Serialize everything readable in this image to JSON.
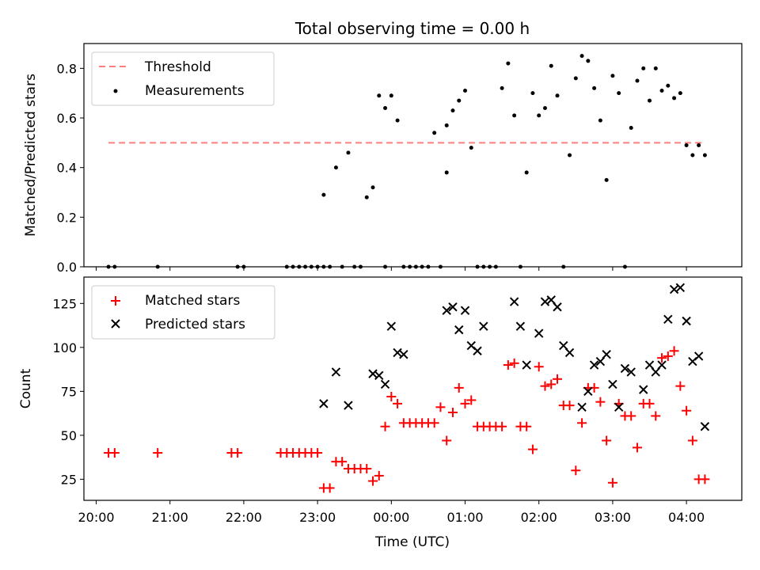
{
  "chart_data": [
    {
      "type": "scatter",
      "title": "Total observing time = 0.00 h",
      "xlabel": "",
      "ylabel": "Matched/Predicted stars",
      "xlim": [
        "19:50",
        "04:45"
      ],
      "ylim": [
        0,
        0.9
      ],
      "yticks": [
        "0.0",
        "0.2",
        "0.4",
        "0.6",
        "0.8"
      ],
      "legend": {
        "position": "upper-left",
        "entries": [
          "Threshold",
          "Measurements"
        ]
      },
      "colors": {
        "threshold": "#ff7f7f",
        "measurements": "#000000"
      },
      "threshold": {
        "name": "Threshold",
        "y": 0.5,
        "x_start": "20:10",
        "x_end": "04:15"
      },
      "series": [
        {
          "name": "Measurements",
          "x": [
            "20:10",
            "20:15",
            "20:50",
            "21:55",
            "22:00",
            "22:35",
            "22:40",
            "22:45",
            "22:50",
            "22:55",
            "23:00",
            "23:05",
            "23:05",
            "23:10",
            "23:15",
            "23:20",
            "23:25",
            "23:30",
            "23:35",
            "23:40",
            "23:45",
            "23:50",
            "23:55",
            "23:55",
            "00:00",
            "00:05",
            "00:10",
            "00:15",
            "00:20",
            "00:25",
            "00:30",
            "00:35",
            "00:40",
            "00:45",
            "00:45",
            "00:50",
            "00:55",
            "01:00",
            "01:05",
            "01:10",
            "01:15",
            "01:20",
            "01:25",
            "01:30",
            "01:35",
            "01:40",
            "01:45",
            "01:50",
            "01:55",
            "02:00",
            "02:05",
            "02:10",
            "02:15",
            "02:20",
            "02:25",
            "02:30",
            "02:35",
            "02:40",
            "02:45",
            "02:50",
            "02:55",
            "03:00",
            "03:05",
            "03:10",
            "03:15",
            "03:20",
            "03:25",
            "03:30",
            "03:35",
            "03:40",
            "03:45",
            "03:50",
            "03:55",
            "04:00",
            "04:05",
            "04:10",
            "04:15"
          ],
          "y": [
            0,
            0,
            0,
            0,
            0,
            0,
            0,
            0,
            0,
            0,
            0,
            0,
            0.29,
            0,
            0.4,
            0,
            0.46,
            0,
            0,
            0.28,
            0.32,
            0.69,
            0.64,
            0,
            0.69,
            0.59,
            0,
            0,
            0,
            0,
            0,
            0.54,
            0,
            0.38,
            0.57,
            0.63,
            0.67,
            0.71,
            0.48,
            0,
            0,
            0,
            0,
            0.72,
            0.82,
            0.61,
            0,
            0.38,
            0.7,
            0.61,
            0.64,
            0.81,
            0.69,
            0,
            0.45,
            0.76,
            0.85,
            0.83,
            0.72,
            0.59,
            0.35,
            0.77,
            0.7,
            0,
            0.56,
            0.75,
            0.8,
            0.67,
            0.8,
            0.71,
            0.73,
            0.68,
            0.7,
            0.49,
            0.45,
            0.49,
            0.45
          ]
        }
      ]
    },
    {
      "type": "scatter",
      "title": "",
      "xlabel": "Time (UTC)",
      "ylabel": "Count",
      "xlim": [
        "19:50",
        "04:45"
      ],
      "ylim": [
        13,
        140
      ],
      "yticks": [
        "25",
        "50",
        "75",
        "100",
        "125"
      ],
      "xticks": [
        "20:00",
        "21:00",
        "22:00",
        "23:00",
        "00:00",
        "01:00",
        "02:00",
        "03:00",
        "04:00"
      ],
      "legend": {
        "position": "upper-left",
        "entries": [
          "Matched stars",
          "Predicted stars"
        ]
      },
      "colors": {
        "matched": "#ff0000",
        "predicted": "#000000"
      },
      "series": [
        {
          "name": "Matched stars",
          "x": [
            "20:10",
            "20:15",
            "20:50",
            "21:50",
            "21:55",
            "22:30",
            "22:35",
            "22:40",
            "22:45",
            "22:50",
            "22:55",
            "23:00",
            "23:05",
            "23:10",
            "23:15",
            "23:20",
            "23:25",
            "23:30",
            "23:35",
            "23:40",
            "23:45",
            "23:50",
            "23:55",
            "00:00",
            "00:05",
            "00:10",
            "00:15",
            "00:20",
            "00:25",
            "00:30",
            "00:35",
            "00:40",
            "00:45",
            "00:50",
            "00:55",
            "01:00",
            "01:05",
            "01:10",
            "01:15",
            "01:20",
            "01:25",
            "01:30",
            "01:35",
            "01:40",
            "01:45",
            "01:50",
            "01:55",
            "02:00",
            "02:05",
            "02:10",
            "02:15",
            "02:20",
            "02:25",
            "02:30",
            "02:35",
            "02:40",
            "02:45",
            "02:50",
            "02:55",
            "03:00",
            "03:05",
            "03:10",
            "03:15",
            "03:20",
            "03:25",
            "03:30",
            "03:35",
            "03:40",
            "03:45",
            "03:50",
            "03:55",
            "04:00",
            "04:05",
            "04:10",
            "04:15"
          ],
          "y": [
            40,
            40,
            40,
            40,
            40,
            40,
            40,
            40,
            40,
            40,
            40,
            40,
            20,
            20,
            35,
            35,
            31,
            31,
            31,
            31,
            24,
            27,
            55,
            72,
            68,
            57,
            57,
            57,
            57,
            57,
            57,
            66,
            47,
            63,
            77,
            68,
            70,
            55,
            55,
            55,
            55,
            55,
            90,
            91,
            55,
            55,
            42,
            89,
            78,
            79,
            82,
            67,
            67,
            30,
            57,
            77,
            77,
            69,
            47,
            23,
            68,
            61,
            61,
            43,
            68,
            68,
            61,
            94,
            95,
            98,
            78,
            64,
            47,
            25,
            25
          ]
        },
        {
          "name": "Predicted stars",
          "x": [
            "23:05",
            "23:15",
            "23:25",
            "23:45",
            "23:50",
            "23:55",
            "00:00",
            "00:05",
            "00:10",
            "00:45",
            "00:50",
            "00:55",
            "01:00",
            "01:05",
            "01:10",
            "01:15",
            "01:40",
            "01:45",
            "01:50",
            "02:00",
            "02:05",
            "02:10",
            "02:15",
            "02:20",
            "02:25",
            "02:35",
            "02:40",
            "02:45",
            "02:50",
            "02:55",
            "03:00",
            "03:05",
            "03:10",
            "03:15",
            "03:25",
            "03:30",
            "03:35",
            "03:40",
            "03:45",
            "03:50",
            "03:55",
            "04:00",
            "04:05",
            "04:10",
            "04:15"
          ],
          "y": [
            68,
            86,
            67,
            85,
            84,
            79,
            112,
            97,
            96,
            121,
            123,
            110,
            121,
            101,
            98,
            112,
            126,
            112,
            90,
            108,
            126,
            127,
            123,
            101,
            97,
            66,
            75,
            90,
            92,
            96,
            79,
            66,
            88,
            86,
            76,
            90,
            86,
            90,
            116,
            133,
            134,
            115,
            92,
            95,
            55
          ]
        }
      ]
    }
  ]
}
